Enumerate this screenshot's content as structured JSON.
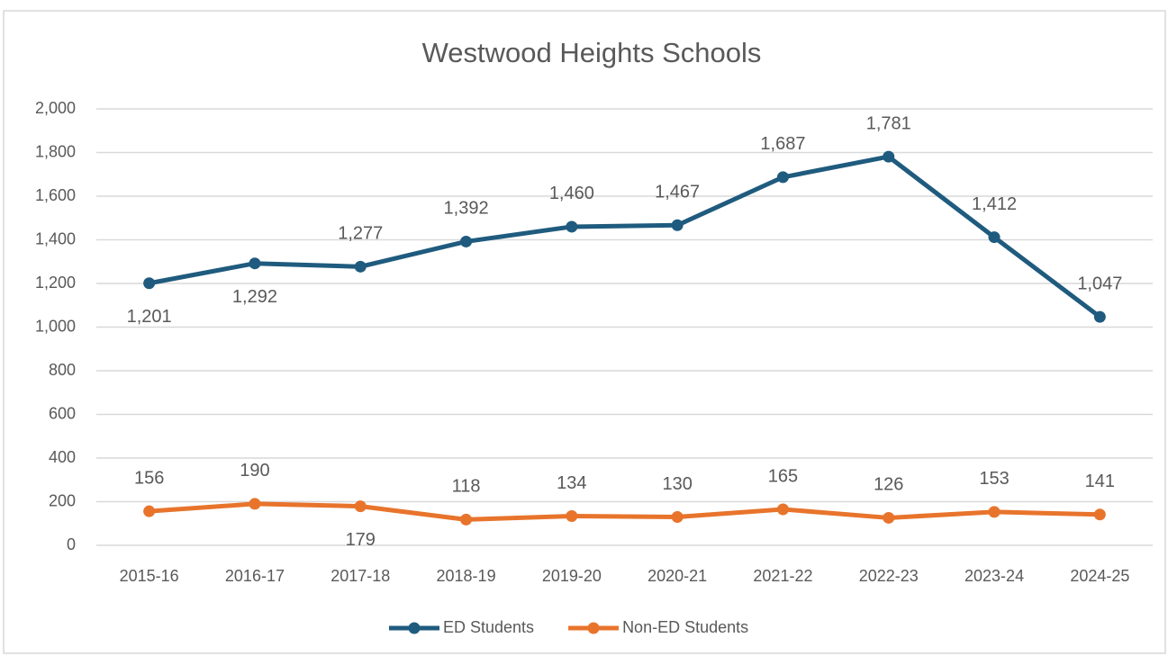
{
  "chart_data": {
    "type": "line",
    "title": "Westwood Heights Schools",
    "categories": [
      "2015-16",
      "2016-17",
      "2017-18",
      "2018-19",
      "2019-20",
      "2020-21",
      "2021-22",
      "2022-23",
      "2023-24",
      "2024-25"
    ],
    "series": [
      {
        "name": "ED Students",
        "color": "#1f5b7e",
        "values": [
          1201,
          1292,
          1277,
          1392,
          1460,
          1467,
          1687,
          1781,
          1412,
          1047
        ],
        "value_labels": [
          "1,201",
          "1,292",
          "1,277",
          "1,392",
          "1,460",
          "1,467",
          "1,687",
          "1,781",
          "1,412",
          "1,047"
        ]
      },
      {
        "name": "Non-ED Students",
        "color": "#e8742c",
        "values": [
          156,
          190,
          179,
          118,
          134,
          130,
          165,
          126,
          153,
          141
        ]
      }
    ],
    "ylim": [
      0,
      2000
    ],
    "yticks": [
      0,
      200,
      400,
      600,
      800,
      {
        "value": 1000,
        "label": "1,000"
      },
      {
        "value": 1200,
        "label": "1,200"
      },
      {
        "value": 1400,
        "label": "1,400"
      },
      {
        "value": 1600,
        "label": "1,600"
      },
      {
        "value": 1800,
        "label": "1,800"
      },
      {
        "value": 2000,
        "label": "2,000"
      }
    ],
    "grid": true,
    "legend": "bottom"
  }
}
